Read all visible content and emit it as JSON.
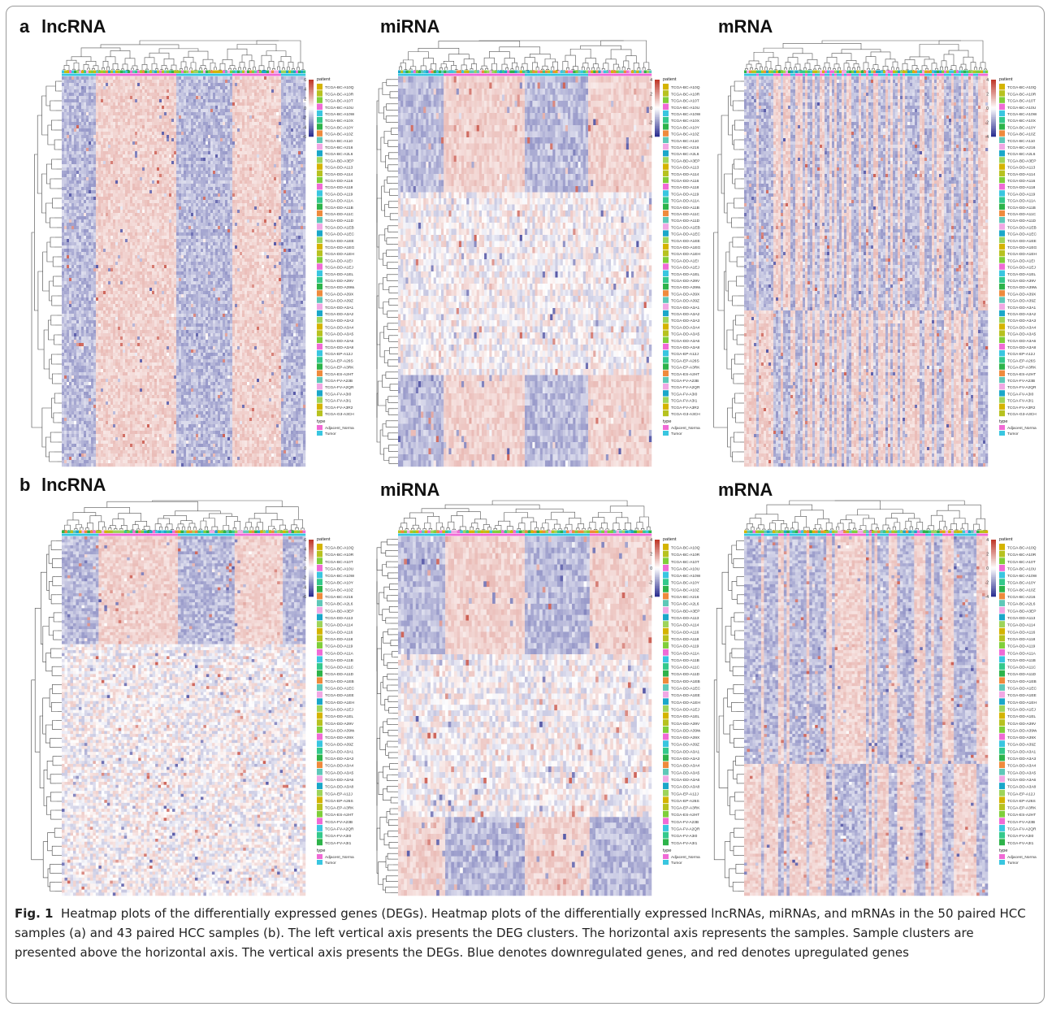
{
  "panels": [
    {
      "letter": "a",
      "titles": [
        "lncRNA",
        "miRNA",
        "mRNA"
      ]
    },
    {
      "letter": "b",
      "titles": [
        "lncRNA",
        "miRNA",
        "mRNA"
      ]
    }
  ],
  "caption": {
    "fig_label": "Fig. 1",
    "text": "Heatmap plots of the differentially expressed genes (DEGs). Heatmap plots of the differentially expressed lncRNAs, miRNAs, and mRNAs in the 50 paired HCC samples (a) and 43 paired HCC samples (b). The left vertical axis presents the DEG clusters. The horizontal axis represents the samples. Sample clusters are presented above the horizontal axis. The vertical axis presents the DEGs. Blue denotes downregulated genes, and red denotes upregulated genes"
  },
  "chart_data": [
    {
      "type": "heatmap",
      "panel": "a",
      "title": "lncRNA",
      "color_scale": {
        "low": "#2e3192",
        "mid": "#ffffff",
        "high": "#c0392b",
        "ticks": [
          6,
          4,
          2,
          0,
          -2,
          -4,
          -6
        ]
      },
      "annotation_legend": {
        "title": "patient",
        "type_title": "type",
        "types": [
          "Adjacent_Normal",
          "Tumor"
        ],
        "type_colors": [
          "#f06ad6",
          "#39c6e0"
        ]
      },
      "patients": [
        "TCGA-BC-A10Q",
        "TCGA-BC-A10R",
        "TCGA-BC-A10T",
        "TCGA-BC-A10U",
        "TCGA-BC-A10W",
        "TCGA-BC-A10X",
        "TCGA-BC-A10Y",
        "TCGA-BC-A10Z",
        "TCGA-BC-A110",
        "TCGA-BC-A216",
        "TCGA-BC-A2L6",
        "TCGA-BD-A3EP",
        "TCGA-DD-A113",
        "TCGA-DD-A114",
        "TCGA-DD-A116",
        "TCGA-DD-A118",
        "TCGA-DD-A119",
        "TCGA-DD-A11A",
        "TCGA-DD-A11B",
        "TCGA-DD-A11C",
        "TCGA-DD-A11D",
        "TCGA-DD-A1EB",
        "TCGA-DD-A1EC",
        "TCGA-DD-A1EE",
        "TCGA-DD-A1EG",
        "TCGA-DD-A1EH",
        "TCGA-DD-A1EI",
        "TCGA-DD-A1EJ",
        "TCGA-DD-A1EL",
        "TCGA-DD-A39V",
        "TCGA-DD-A39W",
        "TCGA-DD-A39X",
        "TCGA-DD-A39Z",
        "TCGA-DD-A3A1",
        "TCGA-DD-A3A2",
        "TCGA-DD-A3A3",
        "TCGA-DD-A3A4",
        "TCGA-DD-A3A5",
        "TCGA-DD-A3A6",
        "TCGA-DD-A3A8",
        "TCGA-EP-A12J",
        "TCGA-EP-A26S",
        "TCGA-EP-A3RK",
        "TCGA-ES-A2HT",
        "TCGA-FV-A23B",
        "TCGA-FV-A2QR",
        "TCGA-FV-A3I0",
        "TCGA-FV-A3I1",
        "TCGA-FV-A3R2",
        "TCGA-G3-A3CH"
      ],
      "clusters": [
        {
          "rows": 0.37,
          "normal": "up",
          "tumor": "down"
        },
        {
          "rows": 0.63,
          "normal": "up",
          "tumor": "down"
        }
      ]
    },
    {
      "type": "heatmap",
      "panel": "a",
      "title": "miRNA",
      "color_scale": {
        "low": "#2e3192",
        "mid": "#ffffff",
        "high": "#c0392b",
        "ticks": [
          4,
          2,
          0,
          -2,
          -4
        ]
      },
      "annotation_legend": {
        "title": "patient",
        "type_title": "type",
        "types": [
          "Adjacent_Normal",
          "Tumor"
        ],
        "type_colors": [
          "#f06ad6",
          "#39c6e0"
        ]
      },
      "patients": [
        "TCGA-BC-A10Q",
        "TCGA-BC-A10R",
        "TCGA-BC-A10T",
        "TCGA-BC-A10U",
        "TCGA-BC-A10W",
        "TCGA-BC-A10X",
        "TCGA-BC-A10Y",
        "TCGA-BC-A10Z",
        "TCGA-BC-A110",
        "TCGA-BC-A216",
        "TCGA-BC-A2L6",
        "TCGA-BD-A3EP",
        "TCGA-DD-A113",
        "TCGA-DD-A114",
        "TCGA-DD-A116",
        "TCGA-DD-A118",
        "TCGA-DD-A119",
        "TCGA-DD-A11A",
        "TCGA-DD-A11B",
        "TCGA-DD-A11C",
        "TCGA-DD-A11D",
        "TCGA-DD-A1EB",
        "TCGA-DD-A1EC",
        "TCGA-DD-A1EE",
        "TCGA-DD-A1EG",
        "TCGA-DD-A1EH",
        "TCGA-DD-A1EI",
        "TCGA-DD-A1EJ",
        "TCGA-DD-A1EL",
        "TCGA-DD-A39V",
        "TCGA-DD-A39W",
        "TCGA-DD-A39X",
        "TCGA-DD-A39Z",
        "TCGA-DD-A3A1",
        "TCGA-DD-A3A2",
        "TCGA-DD-A3A3",
        "TCGA-DD-A3A4",
        "TCGA-DD-A3A5",
        "TCGA-DD-A3A6",
        "TCGA-DD-A3A8",
        "TCGA-EP-A12J",
        "TCGA-EP-A26S",
        "TCGA-EP-A3RK",
        "TCGA-ES-A2HT",
        "TCGA-FV-A23B",
        "TCGA-FV-A2QR",
        "TCGA-FV-A3I0",
        "TCGA-FV-A3I1",
        "TCGA-FV-A3R2",
        "TCGA-G3-A3CH"
      ],
      "clusters": [
        {
          "rows": 0.3,
          "normal": "up",
          "tumor": "down"
        },
        {
          "rows": 0.47,
          "normal": "mixed",
          "tumor": "mixed"
        },
        {
          "rows": 0.23,
          "normal": "up",
          "tumor": "down"
        }
      ]
    },
    {
      "type": "heatmap",
      "panel": "a",
      "title": "mRNA",
      "color_scale": {
        "low": "#2e3192",
        "mid": "#ffffff",
        "high": "#c0392b",
        "ticks": [
          4,
          2,
          0,
          -2,
          -4
        ]
      },
      "annotation_legend": {
        "title": "patient",
        "type_title": "type",
        "types": [
          "Adjacent_Normal",
          "Tumor"
        ],
        "type_colors": [
          "#f06ad6",
          "#39c6e0"
        ]
      },
      "patients": [
        "TCGA-BC-A10Q",
        "TCGA-BC-A10R",
        "TCGA-BC-A10T",
        "TCGA-BC-A10U",
        "TCGA-BC-A10W",
        "TCGA-BC-A10X",
        "TCGA-BC-A10Y",
        "TCGA-BC-A10Z",
        "TCGA-BC-A110",
        "TCGA-BC-A216",
        "TCGA-BC-A2L6",
        "TCGA-BD-A3EP",
        "TCGA-DD-A113",
        "TCGA-DD-A114",
        "TCGA-DD-A116",
        "TCGA-DD-A118",
        "TCGA-DD-A119",
        "TCGA-DD-A11A",
        "TCGA-DD-A11B",
        "TCGA-DD-A11C",
        "TCGA-DD-A11D",
        "TCGA-DD-A1EB",
        "TCGA-DD-A1EC",
        "TCGA-DD-A1EE",
        "TCGA-DD-A1EG",
        "TCGA-DD-A1EH",
        "TCGA-DD-A1EI",
        "TCGA-DD-A1EJ",
        "TCGA-DD-A1EL",
        "TCGA-DD-A39V",
        "TCGA-DD-A39W",
        "TCGA-DD-A39X",
        "TCGA-DD-A39Z",
        "TCGA-DD-A3A1",
        "TCGA-DD-A3A2",
        "TCGA-DD-A3A3",
        "TCGA-DD-A3A4",
        "TCGA-DD-A3A5",
        "TCGA-DD-A3A6",
        "TCGA-DD-A3A8",
        "TCGA-EP-A12J",
        "TCGA-EP-A26S",
        "TCGA-EP-A3RK",
        "TCGA-ES-A2HT",
        "TCGA-FV-A23B",
        "TCGA-FV-A2QR",
        "TCGA-FV-A3I0",
        "TCGA-FV-A3I1",
        "TCGA-FV-A3R2",
        "TCGA-G3-A3CH"
      ],
      "clusters": [
        {
          "rows": 0.6,
          "normal": "up",
          "tumor": "down"
        },
        {
          "rows": 0.4,
          "normal": "down",
          "tumor": "up"
        }
      ]
    },
    {
      "type": "heatmap",
      "panel": "b",
      "title": "lncRNA",
      "color_scale": {
        "low": "#2e3192",
        "mid": "#ffffff",
        "high": "#c0392b",
        "ticks": [
          6,
          4,
          2,
          0,
          -2,
          -4,
          -6
        ]
      },
      "annotation_legend": {
        "title": "patient",
        "type_title": "type",
        "types": [
          "Adjacent_Normal",
          "Tumor"
        ],
        "type_colors": [
          "#f06ad6",
          "#39c6e0"
        ]
      },
      "patients": [
        "TCGA-BC-A10Q",
        "TCGA-BC-A10R",
        "TCGA-BC-A10T",
        "TCGA-BC-A10U",
        "TCGA-BC-A10W",
        "TCGA-BC-A10Y",
        "TCGA-BC-A10Z",
        "TCGA-BC-A216",
        "TCGA-BC-A2L6",
        "TCGA-BD-A3EP",
        "TCGA-DD-A113",
        "TCGA-DD-A114",
        "TCGA-DD-A116",
        "TCGA-DD-A118",
        "TCGA-DD-A119",
        "TCGA-DD-A11A",
        "TCGA-DD-A11B",
        "TCGA-DD-A11C",
        "TCGA-DD-A11D",
        "TCGA-DD-A1EB",
        "TCGA-DD-A1EC",
        "TCGA-DD-A1EE",
        "TCGA-DD-A1EH",
        "TCGA-DD-A1EJ",
        "TCGA-DD-A1EL",
        "TCGA-DD-A39V",
        "TCGA-DD-A39W",
        "TCGA-DD-A39X",
        "TCGA-DD-A39Z",
        "TCGA-DD-A3A1",
        "TCGA-DD-A3A3",
        "TCGA-DD-A3A4",
        "TCGA-DD-A3A5",
        "TCGA-DD-A3A6",
        "TCGA-DD-A3A8",
        "TCGA-EP-A12J",
        "TCGA-EP-A26S",
        "TCGA-EP-A3RK",
        "TCGA-ES-A2HT",
        "TCGA-FV-A23B",
        "TCGA-FV-A2QR",
        "TCGA-FV-A3I0",
        "TCGA-FV-A3I1"
      ],
      "clusters": [
        {
          "rows": 0.3,
          "normal": "up",
          "tumor": "down"
        },
        {
          "rows": 0.7,
          "normal": "mixed",
          "tumor": "mixed"
        }
      ]
    },
    {
      "type": "heatmap",
      "panel": "b",
      "title": "miRNA",
      "color_scale": {
        "low": "#2e3192",
        "mid": "#ffffff",
        "high": "#c0392b",
        "ticks": [
          4,
          2,
          0,
          -2,
          -4
        ]
      },
      "annotation_legend": {
        "title": "patient",
        "type_title": "type",
        "types": [
          "Adjacent_Normal",
          "Tumor"
        ],
        "type_colors": [
          "#f06ad6",
          "#39c6e0"
        ]
      },
      "patients": [
        "TCGA-BC-A10Q",
        "TCGA-BC-A10R",
        "TCGA-BC-A10T",
        "TCGA-BC-A10U",
        "TCGA-BC-A10W",
        "TCGA-BC-A10Y",
        "TCGA-BC-A10Z",
        "TCGA-BC-A216",
        "TCGA-BC-A2L6",
        "TCGA-BD-A3EP",
        "TCGA-DD-A113",
        "TCGA-DD-A114",
        "TCGA-DD-A116",
        "TCGA-DD-A118",
        "TCGA-DD-A119",
        "TCGA-DD-A11A",
        "TCGA-DD-A11B",
        "TCGA-DD-A11C",
        "TCGA-DD-A11D",
        "TCGA-DD-A1EB",
        "TCGA-DD-A1EC",
        "TCGA-DD-A1EE",
        "TCGA-DD-A1EH",
        "TCGA-DD-A1EJ",
        "TCGA-DD-A1EL",
        "TCGA-DD-A39V",
        "TCGA-DD-A39W",
        "TCGA-DD-A39X",
        "TCGA-DD-A39Z",
        "TCGA-DD-A3A1",
        "TCGA-DD-A3A3",
        "TCGA-DD-A3A4",
        "TCGA-DD-A3A5",
        "TCGA-DD-A3A6",
        "TCGA-DD-A3A8",
        "TCGA-EP-A12J",
        "TCGA-EP-A26S",
        "TCGA-EP-A3RK",
        "TCGA-ES-A2HT",
        "TCGA-FV-A23B",
        "TCGA-FV-A2QR",
        "TCGA-FV-A3I0",
        "TCGA-FV-A3I1"
      ],
      "clusters": [
        {
          "rows": 0.33,
          "normal": "up",
          "tumor": "down"
        },
        {
          "rows": 0.45,
          "normal": "mixed",
          "tumor": "mixed"
        },
        {
          "rows": 0.22,
          "normal": "down",
          "tumor": "up"
        }
      ]
    },
    {
      "type": "heatmap",
      "panel": "b",
      "title": "mRNA",
      "color_scale": {
        "low": "#2e3192",
        "mid": "#ffffff",
        "high": "#c0392b",
        "ticks": [
          4,
          2,
          0,
          -2,
          -4
        ]
      },
      "annotation_legend": {
        "title": "patient",
        "type_title": "type",
        "types": [
          "Adjacent_Normal",
          "Tumor"
        ],
        "type_colors": [
          "#f06ad6",
          "#39c6e0"
        ]
      },
      "patients": [
        "TCGA-BC-A10Q",
        "TCGA-BC-A10R",
        "TCGA-BC-A10T",
        "TCGA-BC-A10U",
        "TCGA-BC-A10W",
        "TCGA-BC-A10Y",
        "TCGA-BC-A10Z",
        "TCGA-BC-A216",
        "TCGA-BC-A2L6",
        "TCGA-BD-A3EP",
        "TCGA-DD-A113",
        "TCGA-DD-A114",
        "TCGA-DD-A116",
        "TCGA-DD-A118",
        "TCGA-DD-A119",
        "TCGA-DD-A11A",
        "TCGA-DD-A11B",
        "TCGA-DD-A11C",
        "TCGA-DD-A11D",
        "TCGA-DD-A1EB",
        "TCGA-DD-A1EC",
        "TCGA-DD-A1EE",
        "TCGA-DD-A1EH",
        "TCGA-DD-A1EJ",
        "TCGA-DD-A1EL",
        "TCGA-DD-A39V",
        "TCGA-DD-A39W",
        "TCGA-DD-A39X",
        "TCGA-DD-A39Z",
        "TCGA-DD-A3A1",
        "TCGA-DD-A3A3",
        "TCGA-DD-A3A4",
        "TCGA-DD-A3A5",
        "TCGA-DD-A3A6",
        "TCGA-DD-A3A8",
        "TCGA-EP-A12J",
        "TCGA-EP-A26S",
        "TCGA-EP-A3RK",
        "TCGA-ES-A2HT",
        "TCGA-FV-A23B",
        "TCGA-FV-A2QR",
        "TCGA-FV-A3I0",
        "TCGA-FV-A3I1"
      ],
      "clusters": [
        {
          "rows": 0.63,
          "normal": "up",
          "tumor": "down"
        },
        {
          "rows": 0.37,
          "normal": "down",
          "tumor": "up"
        }
      ]
    }
  ]
}
